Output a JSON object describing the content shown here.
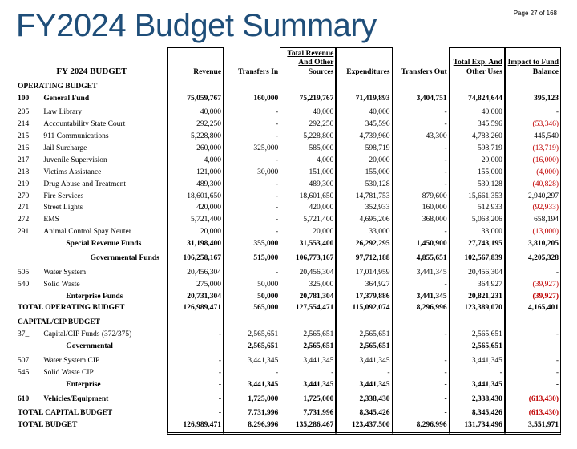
{
  "page_label": "Page 27 of 168",
  "title": "FY2024 Budget Summary",
  "budget_label": "FY 2024 BUDGET",
  "headers": {
    "revenue": "Revenue",
    "transfers_in": "Transfers In",
    "total_rev": "Total Revenue And Other Sources",
    "expenditures": "Expenditures",
    "transfers_out": "Transfers Out",
    "total_exp": "Total Exp. And Other Uses",
    "impact": "Impact to Fund Balance"
  },
  "sections": {
    "operating": "OPERATING BUDGET",
    "capital": "CAPITAL/CIP BUDGET"
  },
  "rows": [
    {
      "code": "100",
      "desc": "General Fund",
      "bold": true,
      "indent": 0,
      "v": [
        "75,059,767",
        "160,000",
        "75,219,767",
        "71,419,893",
        "3,404,751",
        "74,824,644",
        "395,123"
      ]
    },
    {
      "code": "205",
      "desc": "Law Library",
      "v": [
        "40,000",
        "-",
        "40,000",
        "40,000",
        "-",
        "40,000",
        "-"
      ]
    },
    {
      "code": "214",
      "desc": "Accountability State Court",
      "v": [
        "292,250",
        "-",
        "292,250",
        "345,596",
        "-",
        "345,596",
        "(53,346)"
      ],
      "neg": [
        6
      ]
    },
    {
      "code": "215",
      "desc": "911 Communications",
      "v": [
        "5,228,800",
        "-",
        "5,228,800",
        "4,739,960",
        "43,300",
        "4,783,260",
        "445,540"
      ]
    },
    {
      "code": "216",
      "desc": "Jail Surcharge",
      "v": [
        "260,000",
        "325,000",
        "585,000",
        "598,719",
        "-",
        "598,719",
        "(13,719)"
      ],
      "neg": [
        6
      ]
    },
    {
      "code": "217",
      "desc": "Juvenile Supervision",
      "v": [
        "4,000",
        "-",
        "4,000",
        "20,000",
        "-",
        "20,000",
        "(16,000)"
      ],
      "neg": [
        6
      ]
    },
    {
      "code": "218",
      "desc": "Victims Assistance",
      "v": [
        "121,000",
        "30,000",
        "151,000",
        "155,000",
        "-",
        "155,000",
        "(4,000)"
      ],
      "neg": [
        6
      ]
    },
    {
      "code": "219",
      "desc": "Drug Abuse and Treatment",
      "v": [
        "489,300",
        "-",
        "489,300",
        "530,128",
        "-",
        "530,128",
        "(40,828)"
      ],
      "neg": [
        6
      ]
    },
    {
      "code": "270",
      "desc": "Fire Services",
      "v": [
        "18,601,650",
        "-",
        "18,601,650",
        "14,781,753",
        "879,600",
        "15,661,353",
        "2,940,297"
      ]
    },
    {
      "code": "271",
      "desc": "Street Lights",
      "v": [
        "420,000",
        "-",
        "420,000",
        "352,933",
        "160,000",
        "512,933",
        "(92,933)"
      ],
      "neg": [
        6
      ]
    },
    {
      "code": "272",
      "desc": "EMS",
      "v": [
        "5,721,400",
        "-",
        "5,721,400",
        "4,695,206",
        "368,000",
        "5,063,206",
        "658,194"
      ]
    },
    {
      "code": "291",
      "desc": "Animal Control Spay Neuter",
      "v": [
        "20,000",
        "-",
        "20,000",
        "33,000",
        "-",
        "33,000",
        "(13,000)"
      ],
      "neg": [
        6
      ]
    },
    {
      "desc": "Special  Revenue Funds",
      "bold": true,
      "indent": 2,
      "v": [
        "31,198,400",
        "355,000",
        "31,553,400",
        "26,292,295",
        "1,450,900",
        "27,743,195",
        "3,810,205"
      ]
    },
    {
      "desc": "Governmental Funds",
      "bold": true,
      "indent": 3,
      "v": [
        "106,258,167",
        "515,000",
        "106,773,167",
        "97,712,188",
        "4,855,651",
        "102,567,839",
        "4,205,328"
      ]
    },
    {
      "code": "505",
      "desc": "Water System",
      "v": [
        "20,456,304",
        "-",
        "20,456,304",
        "17,014,959",
        "3,441,345",
        "20,456,304",
        "-"
      ]
    },
    {
      "code": "540",
      "desc": "Solid Waste",
      "v": [
        "275,000",
        "50,000",
        "325,000",
        "364,927",
        "-",
        "364,927",
        "(39,927)"
      ],
      "neg": [
        6
      ]
    },
    {
      "desc": "Enterprise Funds",
      "bold": true,
      "indent": 2,
      "v": [
        "20,731,304",
        "50,000",
        "20,781,304",
        "17,379,886",
        "3,441,345",
        "20,821,231",
        "(39,927)"
      ],
      "neg": [
        6
      ]
    },
    {
      "desc": "TOTAL OPERATING BUDGET",
      "bold": true,
      "section": true,
      "v": [
        "126,989,471",
        "565,000",
        "127,554,471",
        "115,092,074",
        "8,296,996",
        "123,389,070",
        "4,165,401"
      ]
    },
    {
      "code": "37_",
      "desc": "Capital/CIP Funds (372/375)",
      "v": [
        "-",
        "2,565,651",
        "2,565,651",
        "2,565,651",
        "-",
        "2,565,651",
        "-"
      ]
    },
    {
      "desc": "Governmental",
      "bold": true,
      "indent": 2,
      "v": [
        "-",
        "2,565,651",
        "2,565,651",
        "2,565,651",
        "-",
        "2,565,651",
        "-"
      ]
    },
    {
      "code": "507",
      "desc": "Water System CIP",
      "v": [
        "-",
        "3,441,345",
        "3,441,345",
        "3,441,345",
        "-",
        "3,441,345",
        "-"
      ]
    },
    {
      "code": "545",
      "desc": "Solid Waste CIP",
      "v": [
        "-",
        "-",
        "-",
        "-",
        "-",
        "-",
        "-"
      ]
    },
    {
      "desc": "Enterprise",
      "bold": true,
      "indent": 2,
      "v": [
        "-",
        "3,441,345",
        "3,441,345",
        "3,441,345",
        "-",
        "3,441,345",
        "-"
      ]
    },
    {
      "code": "610",
      "desc": "Vehicles/Equipment",
      "bold": true,
      "v": [
        "-",
        "1,725,000",
        "1,725,000",
        "2,338,430",
        "-",
        "2,338,430",
        "(613,430)"
      ],
      "neg": [
        6
      ]
    },
    {
      "desc": "TOTAL CAPITAL BUDGET",
      "bold": true,
      "section": true,
      "v": [
        "-",
        "7,731,996",
        "7,731,996",
        "8,345,426",
        "-",
        "8,345,426",
        "(613,430)"
      ],
      "neg": [
        6
      ]
    },
    {
      "desc": "TOTAL BUDGET",
      "bold": true,
      "section": true,
      "dbl": true,
      "v": [
        "126,989,471",
        "8,296,996",
        "135,286,467",
        "123,437,500",
        "8,296,996",
        "131,734,496",
        "3,551,971"
      ]
    }
  ],
  "style": {
    "title_color": "#1f4e79",
    "neg_color": "#c00000",
    "title_fontsize": 40,
    "body_fontsize": 9.5,
    "border_color": "#000000",
    "background_color": "#ffffff"
  }
}
